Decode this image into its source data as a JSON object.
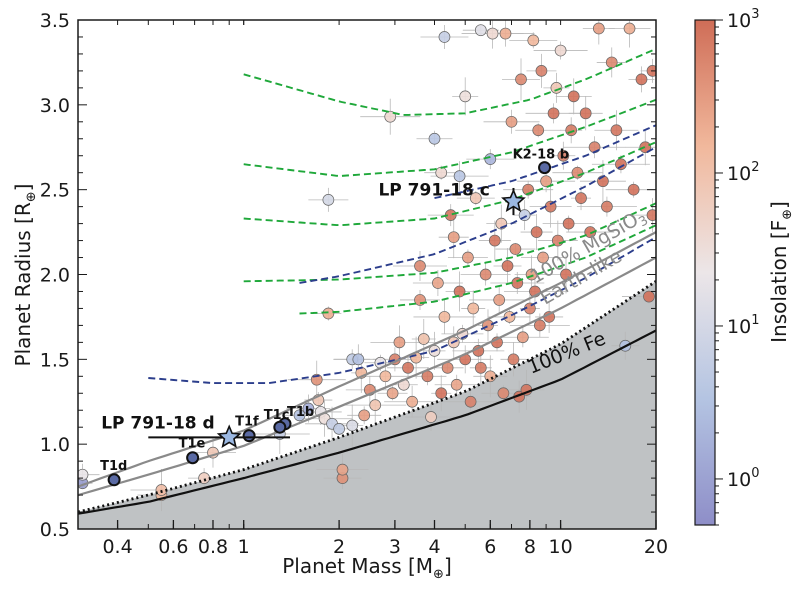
{
  "chart_data": {
    "type": "scatter",
    "xlabel": "Planet Mass [M",
    "xlabel_sub": "⊕",
    "xlabel_close": "]",
    "ylabel": "Planet Radius [R",
    "ylabel_sub": "⊕",
    "ylabel_close": "]",
    "xscale": "log",
    "xlim": [
      0.3,
      20
    ],
    "ylim": [
      0.5,
      3.5
    ],
    "x_ticks": [
      {
        "value": 0.4,
        "label": "0.4"
      },
      {
        "value": 0.6,
        "label": "0.6"
      },
      {
        "value": 0.8,
        "label": "0.8"
      },
      {
        "value": 1,
        "label": "1"
      },
      {
        "value": 2,
        "label": "2"
      },
      {
        "value": 3,
        "label": "3"
      },
      {
        "value": 4,
        "label": "4"
      },
      {
        "value": 6,
        "label": "6"
      },
      {
        "value": 8,
        "label": "8"
      },
      {
        "value": 10,
        "label": "10"
      },
      {
        "value": 20,
        "label": "20"
      }
    ],
    "y_ticks": [
      {
        "value": 0.5,
        "label": "0.5"
      },
      {
        "value": 1.0,
        "label": "1.0"
      },
      {
        "value": 1.5,
        "label": "1.5"
      },
      {
        "value": 2.0,
        "label": "2.0"
      },
      {
        "value": 2.5,
        "label": "2.5"
      },
      {
        "value": 3.0,
        "label": "3.0"
      },
      {
        "value": 3.5,
        "label": "3.5"
      }
    ],
    "colorbar": {
      "label": "Insolation [F",
      "label_sub": "⊕",
      "label_close": "]",
      "scale": "log",
      "range": [
        0.5,
        1000
      ],
      "ticks": [
        {
          "value": 1,
          "base": "10",
          "exp": "0"
        },
        {
          "value": 10,
          "base": "10",
          "exp": "1"
        },
        {
          "value": 100,
          "base": "10",
          "exp": "2"
        },
        {
          "value": 1000,
          "base": "10",
          "exp": "3"
        }
      ],
      "colors": [
        "#8e8ec8",
        "#b4c4e2",
        "#ece6e8",
        "#f1b89c",
        "#cf6d57"
      ]
    },
    "curves": [
      {
        "label": "100% MgSiO",
        "label_sub": "3",
        "color": "#8a8a8a",
        "x": [
          0.3,
          0.5,
          1,
          2,
          5,
          10,
          20
        ],
        "y": [
          0.75,
          0.9,
          1.08,
          1.34,
          1.67,
          1.95,
          2.25
        ]
      },
      {
        "label": "Earth-like",
        "color": "#8a8a8a",
        "x": [
          0.3,
          0.5,
          1,
          2,
          5,
          10,
          20
        ],
        "y": [
          0.7,
          0.82,
          0.99,
          1.22,
          1.53,
          1.8,
          2.1
        ]
      },
      {
        "label": "",
        "color": "#111111",
        "dotted": true,
        "x": [
          0.3,
          0.5,
          1,
          2,
          5,
          10,
          20
        ],
        "y": [
          0.6,
          0.7,
          0.85,
          1.04,
          1.31,
          1.59,
          1.96
        ]
      },
      {
        "label": "100% Fe",
        "color": "#111111",
        "x": [
          0.3,
          0.5,
          1,
          2,
          5,
          10,
          20
        ],
        "y": [
          0.59,
          0.66,
          0.8,
          0.95,
          1.17,
          1.38,
          1.67
        ]
      }
    ],
    "tracks": [
      {
        "color": "#2c3e8c",
        "x": [
          0.5,
          0.8,
          1.2,
          2,
          4,
          7,
          12,
          20
        ],
        "y": [
          1.39,
          1.36,
          1.36,
          1.42,
          1.55,
          1.76,
          1.98,
          2.22
        ]
      },
      {
        "color": "#1fa83a",
        "x": [
          1.5,
          2,
          4,
          7,
          12,
          20
        ],
        "y": [
          1.77,
          1.78,
          1.84,
          1.95,
          2.1,
          2.29
        ]
      },
      {
        "color": "#1fa83a",
        "x": [
          1,
          2,
          4,
          7,
          12,
          20
        ],
        "y": [
          1.96,
          1.97,
          2.01,
          2.1,
          2.23,
          2.42
        ]
      },
      {
        "color": "#2c3e8c",
        "x": [
          1.5,
          2,
          4,
          7,
          12,
          20
        ],
        "y": [
          1.95,
          1.99,
          2.12,
          2.3,
          2.52,
          2.75
        ]
      },
      {
        "color": "#1fa83a",
        "x": [
          1,
          2,
          4,
          7,
          12,
          20
        ],
        "y": [
          2.33,
          2.29,
          2.33,
          2.44,
          2.6,
          2.78
        ]
      },
      {
        "color": "#2c3e8c",
        "x": [
          4,
          7,
          12,
          20
        ],
        "y": [
          2.45,
          2.55,
          2.7,
          2.88
        ]
      },
      {
        "color": "#1fa83a",
        "x": [
          1,
          2,
          4,
          7,
          12,
          20
        ],
        "y": [
          2.65,
          2.58,
          2.62,
          2.72,
          2.87,
          3.03
        ]
      },
      {
        "color": "#1fa83a",
        "x": [
          1,
          2,
          3.2,
          5,
          8,
          12,
          20
        ],
        "y": [
          3.18,
          3.02,
          2.94,
          2.95,
          3.03,
          3.15,
          3.33
        ]
      }
    ],
    "population": [
      {
        "x": 0.31,
        "y": 0.77,
        "f": 0.8
      },
      {
        "x": 0.31,
        "y": 0.82,
        "f": 20
      },
      {
        "x": 0.55,
        "y": 0.7,
        "f": 150
      },
      {
        "x": 0.55,
        "y": 0.73,
        "f": 120
      },
      {
        "x": 0.75,
        "y": 0.8,
        "f": 60
      },
      {
        "x": 0.8,
        "y": 0.95,
        "f": 80
      },
      {
        "x": 1.3,
        "y": 1.06,
        "f": 6
      },
      {
        "x": 1.5,
        "y": 1.17,
        "f": 3
      },
      {
        "x": 1.6,
        "y": 1.21,
        "f": 1.5
      },
      {
        "x": 1.7,
        "y": 1.38,
        "f": 400
      },
      {
        "x": 1.72,
        "y": 1.26,
        "f": 80
      },
      {
        "x": 1.75,
        "y": 1.19,
        "f": 20
      },
      {
        "x": 1.8,
        "y": 1.15,
        "f": 30
      },
      {
        "x": 1.85,
        "y": 1.77,
        "f": 200
      },
      {
        "x": 1.85,
        "y": 2.44,
        "f": 10
      },
      {
        "x": 1.9,
        "y": 1.12,
        "f": 6
      },
      {
        "x": 2,
        "y": 1.09,
        "f": 5
      },
      {
        "x": 2.05,
        "y": 0.8,
        "f": 400
      },
      {
        "x": 2.05,
        "y": 0.85,
        "f": 250
      },
      {
        "x": 2.2,
        "y": 1.11,
        "f": 12
      },
      {
        "x": 2.2,
        "y": 1.5,
        "f": 5
      },
      {
        "x": 2.3,
        "y": 1.5,
        "f": 3
      },
      {
        "x": 2.35,
        "y": 1.42,
        "f": 150
      },
      {
        "x": 2.4,
        "y": 1.17,
        "f": 300
      },
      {
        "x": 2.5,
        "y": 1.32,
        "f": 500
      },
      {
        "x": 2.6,
        "y": 1.23,
        "f": 90
      },
      {
        "x": 2.7,
        "y": 1.48,
        "f": 20
      },
      {
        "x": 2.8,
        "y": 1.4,
        "f": 150
      },
      {
        "x": 2.9,
        "y": 2.93,
        "f": 40
      },
      {
        "x": 2.95,
        "y": 1.3,
        "f": 250
      },
      {
        "x": 3,
        "y": 1.5,
        "f": 600
      },
      {
        "x": 3.1,
        "y": 1.6,
        "f": 300
      },
      {
        "x": 3.2,
        "y": 1.35,
        "f": 40
      },
      {
        "x": 3.3,
        "y": 1.45,
        "f": 800
      },
      {
        "x": 3.4,
        "y": 1.25,
        "f": 200
      },
      {
        "x": 3.5,
        "y": 1.51,
        "f": 150
      },
      {
        "x": 3.6,
        "y": 1.85,
        "f": 400
      },
      {
        "x": 3.6,
        "y": 2.05,
        "f": 500
      },
      {
        "x": 3.7,
        "y": 1.62,
        "f": 100
      },
      {
        "x": 3.8,
        "y": 1.4,
        "f": 700
      },
      {
        "x": 3.9,
        "y": 1.16,
        "f": 60
      },
      {
        "x": 4,
        "y": 1.55,
        "f": 30
      },
      {
        "x": 4,
        "y": 2.8,
        "f": 4
      },
      {
        "x": 4.1,
        "y": 1.95,
        "f": 250
      },
      {
        "x": 4.2,
        "y": 1.3,
        "f": 900
      },
      {
        "x": 4.2,
        "y": 2.6,
        "f": 40
      },
      {
        "x": 4.3,
        "y": 3.4,
        "f": 6
      },
      {
        "x": 4.3,
        "y": 1.75,
        "f": 150
      },
      {
        "x": 4.4,
        "y": 1.45,
        "f": 500
      },
      {
        "x": 4.5,
        "y": 2.35,
        "f": 800
      },
      {
        "x": 4.6,
        "y": 1.6,
        "f": 80
      },
      {
        "x": 4.6,
        "y": 2.22,
        "f": 300
      },
      {
        "x": 4.7,
        "y": 1.35,
        "f": 250
      },
      {
        "x": 4.8,
        "y": 2.58,
        "f": 4
      },
      {
        "x": 4.8,
        "y": 1.9,
        "f": 900
      },
      {
        "x": 4.9,
        "y": 1.65,
        "f": 40
      },
      {
        "x": 5,
        "y": 1.5,
        "f": 900
      },
      {
        "x": 5,
        "y": 3.05,
        "f": 30
      },
      {
        "x": 5.1,
        "y": 2.1,
        "f": 300
      },
      {
        "x": 5.2,
        "y": 1.25,
        "f": 600
      },
      {
        "x": 5.3,
        "y": 1.8,
        "f": 150
      },
      {
        "x": 5.4,
        "y": 2.45,
        "f": 80
      },
      {
        "x": 5.5,
        "y": 1.55,
        "f": 900
      },
      {
        "x": 5.6,
        "y": 1.45,
        "f": 700
      },
      {
        "x": 5.6,
        "y": 3.44,
        "f": 15
      },
      {
        "x": 5.8,
        "y": 2.0,
        "f": 500
      },
      {
        "x": 5.9,
        "y": 1.7,
        "f": 400
      },
      {
        "x": 6,
        "y": 1.4,
        "f": 200
      },
      {
        "x": 6,
        "y": 2.68,
        "f": 2
      },
      {
        "x": 6.1,
        "y": 3.42,
        "f": 40
      },
      {
        "x": 6.2,
        "y": 2.2,
        "f": 800
      },
      {
        "x": 6.3,
        "y": 1.6,
        "f": 900
      },
      {
        "x": 6.4,
        "y": 1.85,
        "f": 300
      },
      {
        "x": 6.5,
        "y": 2.3,
        "f": 80
      },
      {
        "x": 6.6,
        "y": 1.3,
        "f": 500
      },
      {
        "x": 6.7,
        "y": 3.42,
        "f": 200
      },
      {
        "x": 6.8,
        "y": 2.05,
        "f": 900
      },
      {
        "x": 6.9,
        "y": 1.75,
        "f": 150
      },
      {
        "x": 7,
        "y": 2.9,
        "f": 300
      },
      {
        "x": 7.1,
        "y": 1.5,
        "f": 700
      },
      {
        "x": 7.2,
        "y": 2.15,
        "f": 500
      },
      {
        "x": 7.3,
        "y": 1.95,
        "f": 900
      },
      {
        "x": 7.4,
        "y": 1.28,
        "f": 900
      },
      {
        "x": 7.5,
        "y": 3.15,
        "f": 500
      },
      {
        "x": 7.6,
        "y": 1.63,
        "f": 300
      },
      {
        "x": 7.7,
        "y": 2.35,
        "f": 6
      },
      {
        "x": 7.8,
        "y": 1.32,
        "f": 800
      },
      {
        "x": 7.9,
        "y": 2.5,
        "f": 700
      },
      {
        "x": 8,
        "y": 1.8,
        "f": 600
      },
      {
        "x": 8.1,
        "y": 2.0,
        "f": 300
      },
      {
        "x": 8.2,
        "y": 3.38,
        "f": 150
      },
      {
        "x": 8.3,
        "y": 1.9,
        "f": 900
      },
      {
        "x": 8.4,
        "y": 2.25,
        "f": 900
      },
      {
        "x": 8.5,
        "y": 2.85,
        "f": 500
      },
      {
        "x": 8.6,
        "y": 1.7,
        "f": 700
      },
      {
        "x": 8.7,
        "y": 3.2,
        "f": 600
      },
      {
        "x": 8.8,
        "y": 2.1,
        "f": 300
      },
      {
        "x": 9,
        "y": 2.55,
        "f": 300
      },
      {
        "x": 9.2,
        "y": 1.75,
        "f": 900
      },
      {
        "x": 9.3,
        "y": 2.4,
        "f": 800
      },
      {
        "x": 9.5,
        "y": 2.95,
        "f": 900
      },
      {
        "x": 9.7,
        "y": 3.1,
        "f": 80
      },
      {
        "x": 9.8,
        "y": 2.2,
        "f": 600
      },
      {
        "x": 10,
        "y": 3.32,
        "f": 40
      },
      {
        "x": 10.2,
        "y": 2.7,
        "f": 600
      },
      {
        "x": 10.4,
        "y": 2.0,
        "f": 900
      },
      {
        "x": 10.6,
        "y": 2.3,
        "f": 900
      },
      {
        "x": 10.8,
        "y": 2.85,
        "f": 700
      },
      {
        "x": 11,
        "y": 3.05,
        "f": 900
      },
      {
        "x": 11.3,
        "y": 2.6,
        "f": 500
      },
      {
        "x": 11.6,
        "y": 2.45,
        "f": 800
      },
      {
        "x": 12,
        "y": 2.95,
        "f": 900
      },
      {
        "x": 12.4,
        "y": 2.25,
        "f": 900
      },
      {
        "x": 12.8,
        "y": 2.75,
        "f": 600
      },
      {
        "x": 13.2,
        "y": 3.45,
        "f": 300
      },
      {
        "x": 13.6,
        "y": 2.55,
        "f": 900
      },
      {
        "x": 14,
        "y": 2.4,
        "f": 700
      },
      {
        "x": 14.5,
        "y": 3.25,
        "f": 500
      },
      {
        "x": 15,
        "y": 2.85,
        "f": 800
      },
      {
        "x": 15.5,
        "y": 2.65,
        "f": 900
      },
      {
        "x": 16,
        "y": 1.58,
        "f": 3
      },
      {
        "x": 16.5,
        "y": 3.45,
        "f": 200
      },
      {
        "x": 17,
        "y": 2.5,
        "f": 900
      },
      {
        "x": 18,
        "y": 3.15,
        "f": 900
      },
      {
        "x": 18.5,
        "y": 2.75,
        "f": 900
      },
      {
        "x": 19,
        "y": 1.87,
        "f": 900
      },
      {
        "x": 19.5,
        "y": 3.2,
        "f": 900
      },
      {
        "x": 19.5,
        "y": 2.35,
        "f": 800
      }
    ],
    "highlighted": [
      {
        "name": "T1b",
        "x": 1.35,
        "y": 1.12,
        "label": "T1b"
      },
      {
        "name": "T1c",
        "x": 1.3,
        "y": 1.1,
        "label": "T1c"
      },
      {
        "name": "T1d",
        "x": 0.39,
        "y": 0.79,
        "label": "T1d"
      },
      {
        "name": "T1e",
        "x": 0.69,
        "y": 0.92,
        "label": "T1e"
      },
      {
        "name": "T1f",
        "x": 1.04,
        "y": 1.05,
        "label": "T1f"
      },
      {
        "name": "K2-18 b",
        "x": 8.9,
        "y": 2.63,
        "label": "K2-18 b"
      }
    ],
    "stars": [
      {
        "name": "LP 791-18 c",
        "label": "LP 791-18 c",
        "x": 7.1,
        "y": 2.43,
        "y_err": 0.08,
        "x_lim": null
      },
      {
        "name": "LP 791-18 d",
        "label": "LP 791-18 d",
        "x": 0.9,
        "y": 1.04,
        "y_err": 0.03,
        "x_lim": [
          0.5,
          1.4
        ]
      }
    ]
  }
}
